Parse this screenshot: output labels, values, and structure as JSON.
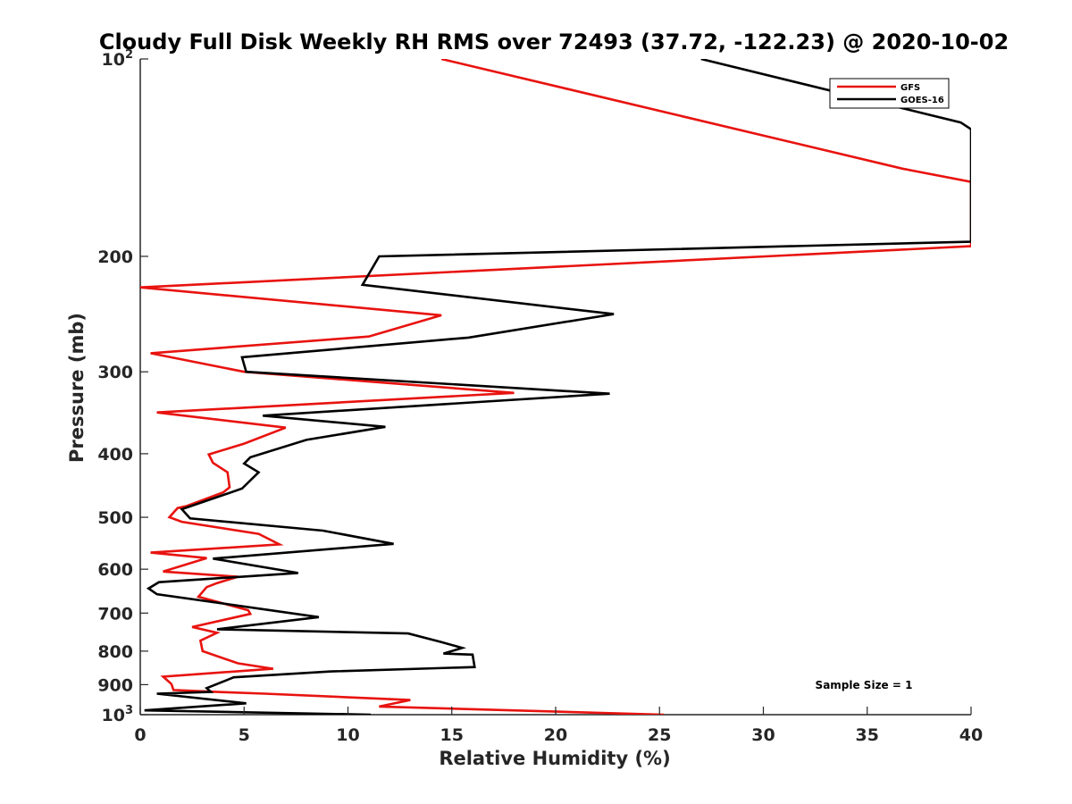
{
  "chart_data": {
    "type": "line",
    "title": "Cloudy Full Disk Weekly RH RMS over 72493 (37.72, -122.23) @ 2020-10-02",
    "xlabel": "Relative Humidity (%)",
    "ylabel": "Pressure (mb)",
    "xlim": [
      0,
      40
    ],
    "ylim": [
      100,
      1000
    ],
    "yscale": "log",
    "y_reversed": true,
    "x_ticks": [
      0,
      5,
      10,
      15,
      20,
      25,
      30,
      35,
      40
    ],
    "y_ticks": [
      {
        "value": 100,
        "base": "10",
        "exp": "2"
      },
      {
        "value": 200,
        "label": "200"
      },
      {
        "value": 300,
        "label": "300"
      },
      {
        "value": 400,
        "label": "400"
      },
      {
        "value": 500,
        "label": "500"
      },
      {
        "value": 600,
        "label": "600"
      },
      {
        "value": 700,
        "label": "700"
      },
      {
        "value": 800,
        "label": "800"
      },
      {
        "value": 900,
        "label": "900"
      },
      {
        "value": 1000,
        "base": "10",
        "exp": "3"
      }
    ],
    "grid": false,
    "legend_position": "top-right",
    "annotation": "Sample Size = 1",
    "series": [
      {
        "name": "GFS",
        "color": "#e8130f",
        "points": [
          [
            14.5,
            100
          ],
          [
            36.7,
            147
          ],
          [
            40,
            154
          ],
          [
            40,
            193
          ],
          [
            0,
            223
          ],
          [
            14.5,
            246
          ],
          [
            11.0,
            265
          ],
          [
            0.5,
            281
          ],
          [
            5,
            300
          ],
          [
            18,
            323
          ],
          [
            0.8,
            346
          ],
          [
            7,
            365
          ],
          [
            5,
            386
          ],
          [
            3.3,
            401
          ],
          [
            3.5,
            413
          ],
          [
            4.2,
            427
          ],
          [
            4.3,
            450
          ],
          [
            4.0,
            458
          ],
          [
            2.2,
            481
          ],
          [
            1.8,
            484
          ],
          [
            1.4,
            500
          ],
          [
            2.0,
            508
          ],
          [
            5.7,
            530
          ],
          [
            6.7,
            550
          ],
          [
            0.5,
            566
          ],
          [
            3.2,
            577
          ],
          [
            1.1,
            605
          ],
          [
            4.7,
            616
          ],
          [
            3.7,
            630
          ],
          [
            3.2,
            639
          ],
          [
            2.8,
            661
          ],
          [
            5.2,
            693
          ],
          [
            5.3,
            702
          ],
          [
            2.5,
            735
          ],
          [
            3.7,
            750
          ],
          [
            2.9,
            771
          ],
          [
            3.0,
            800
          ],
          [
            4.7,
            835
          ],
          [
            6.4,
            851
          ],
          [
            1.1,
            875
          ],
          [
            1.5,
            898
          ],
          [
            1.6,
            917
          ],
          [
            4.0,
            924
          ],
          [
            6.0,
            929
          ],
          [
            13,
            950
          ],
          [
            11.5,
            972
          ],
          [
            25.2,
            1000
          ]
        ]
      },
      {
        "name": "GOES-16",
        "color": "#000000",
        "points": [
          [
            27,
            100
          ],
          [
            39.5,
            125
          ],
          [
            40,
            128
          ],
          [
            40,
            190
          ],
          [
            11.5,
            200
          ],
          [
            10.7,
            221
          ],
          [
            22.8,
            245
          ],
          [
            15.8,
            266
          ],
          [
            4.9,
            285
          ],
          [
            5.1,
            300
          ],
          [
            22.6,
            324
          ],
          [
            5.9,
            350
          ],
          [
            11.8,
            364
          ],
          [
            8.0,
            381
          ],
          [
            5.3,
            405
          ],
          [
            5.0,
            414
          ],
          [
            5.7,
            427
          ],
          [
            4.9,
            452
          ],
          [
            2.0,
            486
          ],
          [
            2.4,
            502
          ],
          [
            8.8,
            524
          ],
          [
            12.2,
            549
          ],
          [
            3.5,
            578
          ],
          [
            7.6,
            608
          ],
          [
            0.9,
            628
          ],
          [
            0.4,
            642
          ],
          [
            0.8,
            655
          ],
          [
            8.6,
            710
          ],
          [
            3.7,
            741
          ],
          [
            12.9,
            752
          ],
          [
            14.5,
            775
          ],
          [
            15.5,
            791
          ],
          [
            14.6,
            807
          ],
          [
            16.0,
            810
          ],
          [
            16.1,
            846
          ],
          [
            9.2,
            859
          ],
          [
            4.5,
            877
          ],
          [
            3.2,
            911
          ],
          [
            3.4,
            923
          ],
          [
            0.8,
            929
          ],
          [
            5.1,
            961
          ],
          [
            0.2,
            985
          ],
          [
            11.1,
            1000
          ]
        ]
      }
    ]
  }
}
